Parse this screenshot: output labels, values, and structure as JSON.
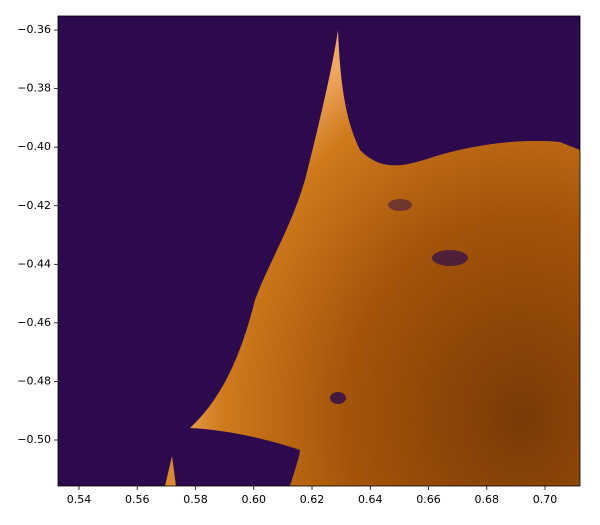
{
  "chart_data": {
    "type": "heatmap",
    "xlim": [
      0.5328,
      0.712
    ],
    "ylim": [
      -0.5157,
      -0.3552
    ],
    "xticks": [
      0.54,
      0.56,
      0.58,
      {
        "value": 0.6,
        "label": "0.60"
      },
      0.62,
      0.64,
      0.66,
      0.68,
      {
        "value": 0.7,
        "label": "0.70"
      }
    ],
    "yticks": [
      {
        "value": -0.36,
        "label": "−0.36"
      },
      {
        "value": -0.38,
        "label": "−0.38"
      },
      {
        "value": -0.4,
        "label": "−0.40"
      },
      {
        "value": -0.42,
        "label": "−0.42"
      },
      {
        "value": -0.44,
        "label": "−0.44"
      },
      {
        "value": -0.46,
        "label": "−0.46"
      },
      {
        "value": -0.48,
        "label": "−0.48"
      },
      {
        "value": -0.5,
        "label": "−0.50"
      }
    ],
    "grid": false
  }
}
